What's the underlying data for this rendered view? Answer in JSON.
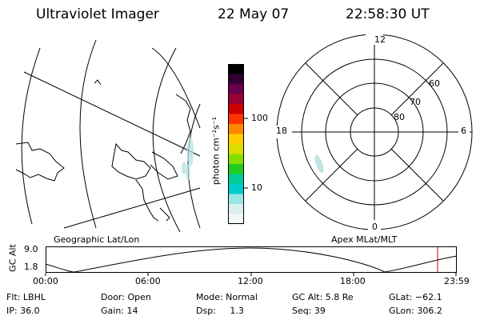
{
  "header": {
    "instrument": "Ultraviolet Imager",
    "date": "22 May 07",
    "time": "22:58:30 UT"
  },
  "geo_map": {
    "caption": "Geographic Lat/Lon"
  },
  "polar_plot": {
    "caption": "Apex MLat/MLT",
    "mlt_labels": {
      "top": "12",
      "right": "6",
      "bottom": "0",
      "left": "18"
    },
    "lat_labels": [
      "60",
      "70",
      "80"
    ]
  },
  "colorbar": {
    "unit_label": "photon cm⁻²s⁻¹",
    "tick_labels": [
      "100",
      "10"
    ],
    "colors": [
      "#000000",
      "#330033",
      "#66004a",
      "#990033",
      "#cc0000",
      "#ff3300",
      "#ff8800",
      "#ffcc00",
      "#dddd00",
      "#88dd00",
      "#22cc22",
      "#00cc99",
      "#00cccc",
      "#99e6e6",
      "#dcefef",
      "#f4f8f8"
    ]
  },
  "orbit": {
    "y_axis_title": "GC Alt",
    "y_ticks": [
      "9.0",
      "1.8"
    ],
    "x_ticks": [
      "00:00",
      "06:00",
      "12:00",
      "18:00",
      "23:59"
    ],
    "marker_color": "#cc0000"
  },
  "footer": {
    "flt": "Flt: LBHL",
    "ip": "IP: 36.0",
    "door": "Door: Open",
    "gain": "Gain: 14",
    "mode": "Mode: Normal",
    "dsp": "Dsp:     1.3",
    "gc_alt": "GC Alt: 5.8 Re",
    "seq": "Seq: 39",
    "glat": "GLat: −62.1",
    "glon": "GLon: 306.2"
  }
}
